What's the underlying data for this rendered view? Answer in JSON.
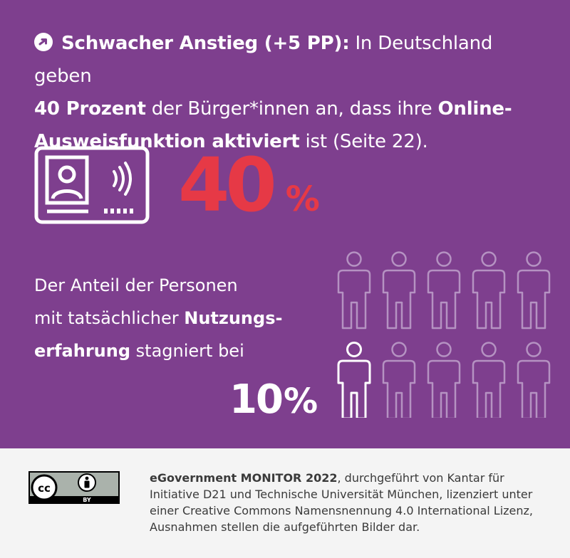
{
  "headline": {
    "bold_lead": "Schwacher Anstieg (+5 PP):",
    "text_1": " In Deutschland geben ",
    "bold_2": "40 Prozent",
    "text_2": " der Bürger*innen an, dass ihre ",
    "bold_3": "Online-Ausweisfunktion aktiviert",
    "text_3": " ist (Seite 22)."
  },
  "stat_main": {
    "value": "40",
    "unit": "%"
  },
  "subtext": {
    "line_1": "Der Anteil der Personen",
    "line_2_plain": "mit tatsächlicher ",
    "line_2_bold": "Nutzungs-",
    "line_3_bold": "erfahrung",
    "line_3_plain": " stagniert bei"
  },
  "stat_sub": {
    "value": "10",
    "unit": "%"
  },
  "people_chart": {
    "total": 10,
    "highlighted": 1
  },
  "footer": {
    "bold": "eGovernment MONITOR 2022",
    "text": ", durchgeführt von Kantar für Initiative D21 und Technische Universität München, lizenziert unter einer Creative Commons Namensnennung 4.0 International Lizenz, Ausnahmen stellen die aufgeführten Bilder dar.",
    "license_cc": "cc",
    "license_by": "BY"
  },
  "colors": {
    "background": "#7e3f8e",
    "accent": "#e63946",
    "footer_bg": "#f4f4f4"
  }
}
